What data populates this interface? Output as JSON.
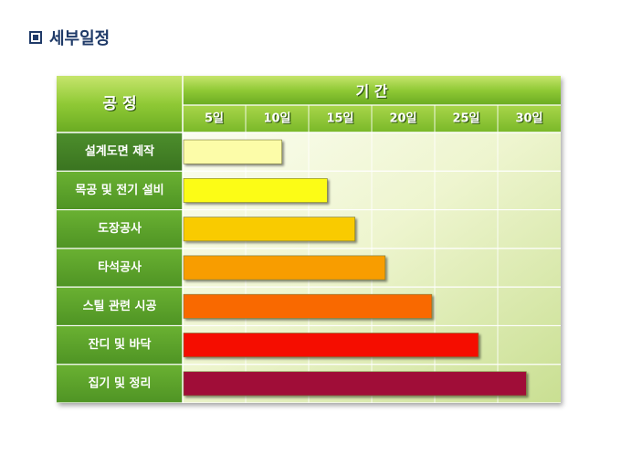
{
  "page": {
    "title": "세부일정",
    "title_icon": "square-bullet-icon"
  },
  "colors": {
    "header_green": "#7fbf2a",
    "header_green_light": "#b7dd5a",
    "row_green": "#5a9e2a",
    "first_row_green": "#3f7f25",
    "plot_light": "#f6fae4",
    "plot_dark": "#cfe39a"
  },
  "chart_data": {
    "type": "bar",
    "orientation": "horizontal",
    "title": "",
    "header": {
      "process": "공 정",
      "period": "기 간"
    },
    "x_ticks": [
      "5일",
      "10일",
      "15일",
      "20일",
      "25일",
      "30일"
    ],
    "xlim": [
      0,
      30
    ],
    "grid": true,
    "categories": [
      "설계도면 제작",
      "목공 및 전기 설비",
      "도장공사",
      "타석공사",
      "스틸 관련 시공",
      "잔디 및 바닥",
      "집기 및 정리"
    ],
    "values": [
      7.8,
      11.4,
      13.6,
      16.0,
      19.7,
      23.4,
      27.2
    ],
    "bar_colors": [
      "#fcfca8",
      "#fcfc13",
      "#f9cb00",
      "#f89d00",
      "#f96900",
      "#f50f00",
      "#a00a38"
    ]
  }
}
